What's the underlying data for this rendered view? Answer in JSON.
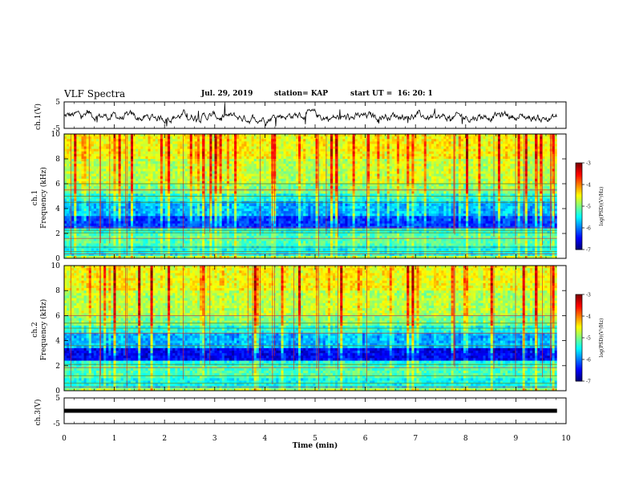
{
  "header": {
    "title": "VLF Spectra",
    "date": "Jul. 29, 2019",
    "station": "station= KAP",
    "start": "start UT =  16: 20: 1"
  },
  "chart_data": [
    {
      "type": "line",
      "panel": "ch1-waveform",
      "ylabel": "ch.1(V)",
      "xlim": [
        0,
        10
      ],
      "ylim": [
        -5,
        5
      ],
      "yticks": [
        5,
        -5
      ],
      "series": [
        {
          "description_values_approx": [
            0.5,
            -1.5,
            1.0,
            -0.5,
            0.8,
            -1.0,
            1.2,
            -1.8,
            0.3,
            1.5,
            -0.8
          ]
        }
      ]
    },
    {
      "type": "heatmap",
      "panel": "ch1-spectrogram",
      "ylabel": "Frequency (kHz)",
      "channel_label": "ch.1",
      "xlim": [
        0,
        10
      ],
      "ylim": [
        0,
        10
      ],
      "yticks": [
        0,
        2,
        4,
        6,
        8,
        10
      ],
      "colorbar": {
        "label": "log(PSD)(V²/Hz)",
        "min": -7,
        "max": -3,
        "ticks": [
          -3,
          -4,
          -5,
          -6,
          -7
        ]
      }
    },
    {
      "type": "heatmap",
      "panel": "ch2-spectrogram",
      "ylabel": "Frequency (kHz)",
      "channel_label": "ch.2",
      "xlim": [
        0,
        10
      ],
      "ylim": [
        0,
        10
      ],
      "yticks": [
        0,
        2,
        4,
        6,
        8,
        10
      ],
      "colorbar": {
        "label": "log(PSD)(V²/Hz)",
        "min": -7,
        "max": -3,
        "ticks": [
          -3,
          -4,
          -5,
          -6,
          -7
        ]
      }
    },
    {
      "type": "line",
      "panel": "ch3-waveform",
      "ylabel": "ch.3(V)",
      "xlim": [
        0,
        10
      ],
      "ylim": [
        -5,
        5
      ],
      "yticks": [
        5,
        -5
      ],
      "series": [
        {
          "constant_value": 0
        }
      ]
    }
  ],
  "xaxis": {
    "label": "Time (min)",
    "ticks": [
      0,
      1,
      2,
      3,
      4,
      5,
      6,
      7,
      8,
      9,
      10
    ]
  },
  "labels": {
    "ch1_v": "ch.1(V)",
    "ch3_v": "ch.3(V)",
    "freq": "Frequency (kHz)",
    "ch1": "ch.1",
    "ch2": "ch.2",
    "cbar": "log(PSD)(V²/Hz)"
  }
}
